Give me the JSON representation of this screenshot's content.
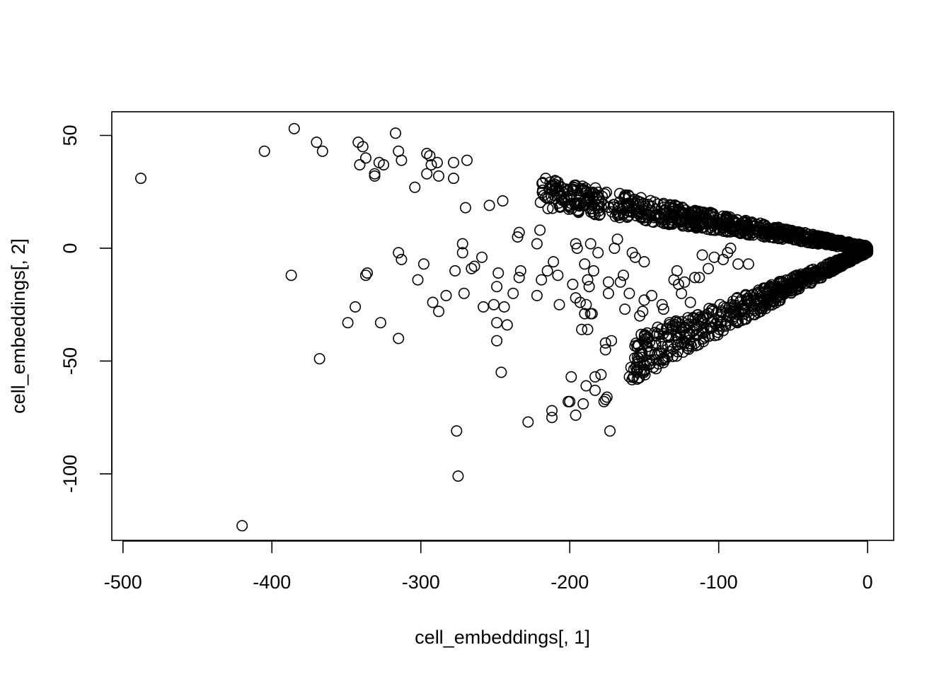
{
  "chart_data": {
    "type": "scatter",
    "title": "",
    "xlabel": "cell_embeddings[, 1]",
    "ylabel": "cell_embeddings[, 2]",
    "xlim": [
      -507.5,
      17.5
    ],
    "ylim": [
      -129.5,
      60.5
    ],
    "xticks": [
      -500,
      -400,
      -300,
      -200,
      -100,
      0
    ],
    "yticks": [
      -100,
      -50,
      0,
      50
    ],
    "grid": false,
    "legend": "none",
    "marker": "open-circle",
    "outlier_points": [
      [
        -488,
        31
      ],
      [
        -420,
        -123
      ],
      [
        -405,
        43
      ],
      [
        -385,
        53
      ],
      [
        -387,
        -12
      ],
      [
        -370,
        47
      ],
      [
        -366,
        43
      ],
      [
        -368,
        -49
      ],
      [
        -349,
        -33
      ],
      [
        -344,
        -26
      ],
      [
        -342,
        47
      ],
      [
        -341,
        37
      ],
      [
        -339,
        45
      ],
      [
        -337,
        40
      ],
      [
        -337,
        -12
      ],
      [
        -336,
        -11
      ],
      [
        -331,
        32
      ],
      [
        -331,
        33
      ],
      [
        -328,
        38
      ],
      [
        -327,
        -33
      ],
      [
        -325,
        37
      ],
      [
        -317,
        51
      ],
      [
        -315,
        43
      ],
      [
        -315,
        -2
      ],
      [
        -315,
        -40
      ],
      [
        -313,
        39
      ],
      [
        -313,
        -5
      ],
      [
        -304,
        27
      ],
      [
        -302,
        -14
      ],
      [
        -298,
        -7
      ],
      [
        -296,
        33
      ],
      [
        -296,
        42
      ],
      [
        -294,
        41
      ],
      [
        -293,
        37
      ],
      [
        -292,
        -24
      ],
      [
        -289,
        38
      ],
      [
        -288,
        -28
      ],
      [
        -288,
        32
      ],
      [
        -283,
        -21
      ],
      [
        -278,
        38
      ],
      [
        -278,
        31
      ],
      [
        -277,
        -10
      ],
      [
        -276,
        -81
      ],
      [
        -275,
        -101
      ],
      [
        -272,
        2
      ],
      [
        -272,
        -2
      ],
      [
        -271,
        -20
      ],
      [
        -270,
        18
      ],
      [
        -269,
        39
      ],
      [
        -266,
        -9
      ],
      [
        -264,
        -8
      ],
      [
        -259,
        -4
      ],
      [
        -258,
        -26
      ],
      [
        -254,
        19
      ],
      [
        -251,
        -25
      ],
      [
        -249,
        -41
      ],
      [
        -249,
        -33
      ],
      [
        -249,
        -17
      ],
      [
        -248,
        -11
      ],
      [
        -246,
        -55
      ],
      [
        -245,
        21
      ],
      [
        -244,
        -26
      ],
      [
        -242,
        -34
      ],
      [
        -238,
        -20
      ],
      [
        -235,
        5
      ],
      [
        -234,
        7
      ],
      [
        -234,
        -13
      ],
      [
        -233,
        -10
      ],
      [
        -228,
        -77
      ],
      [
        -222,
        2
      ],
      [
        -222,
        -21
      ],
      [
        -220,
        8
      ],
      [
        -219,
        -14
      ],
      [
        -215,
        -10
      ],
      [
        -212,
        -72
      ],
      [
        -212,
        -75
      ],
      [
        -211,
        -6
      ],
      [
        -208,
        -12
      ],
      [
        -207,
        -25
      ],
      [
        -201,
        -68
      ],
      [
        -200,
        -68
      ],
      [
        -199,
        -57
      ],
      [
        -198,
        -16
      ],
      [
        -196,
        -74
      ],
      [
        -196,
        -22
      ],
      [
        -196,
        2
      ],
      [
        -195,
        0
      ],
      [
        -193,
        -24
      ],
      [
        -192,
        -36
      ],
      [
        -191,
        -69
      ],
      [
        -190,
        -29
      ],
      [
        -190,
        -7
      ],
      [
        -189,
        -61
      ],
      [
        -189,
        -25
      ],
      [
        -188,
        -36
      ],
      [
        -188,
        -14
      ],
      [
        -187,
        -17
      ],
      [
        -186,
        -29
      ],
      [
        -186,
        2
      ],
      [
        -185,
        -29
      ],
      [
        -184,
        -10
      ],
      [
        -183,
        -57
      ],
      [
        -183,
        -63
      ],
      [
        -181,
        -2
      ],
      [
        -179,
        -56
      ],
      [
        -177,
        -68
      ],
      [
        -176,
        -42
      ],
      [
        -176,
        -45
      ],
      [
        -176,
        -67
      ],
      [
        -175,
        -66
      ],
      [
        -174,
        -15
      ],
      [
        -174,
        -20
      ],
      [
        -173,
        -81
      ],
      [
        -172,
        -41
      ],
      [
        -170,
        0
      ],
      [
        -168,
        4
      ],
      [
        -166,
        -15
      ],
      [
        -164,
        -12
      ],
      [
        -163,
        -27
      ],
      [
        -160,
        -20
      ],
      [
        -158,
        -2
      ],
      [
        -156,
        -4
      ],
      [
        -153,
        -30
      ],
      [
        -151,
        -28
      ],
      [
        -150,
        -6
      ],
      [
        -150,
        -23
      ],
      [
        -145,
        -21
      ],
      [
        -141,
        -35
      ],
      [
        -138,
        -25
      ],
      [
        -137,
        -27
      ],
      [
        -133,
        -33
      ],
      [
        -130,
        -14
      ],
      [
        -128,
        -10
      ],
      [
        -127,
        -16
      ],
      [
        -125,
        -20
      ],
      [
        -123,
        -15
      ],
      [
        -119,
        -24
      ],
      [
        -116,
        -13
      ],
      [
        -113,
        -13
      ],
      [
        -111,
        -3
      ],
      [
        -107,
        -9
      ],
      [
        -103,
        -4
      ],
      [
        -97,
        -5
      ],
      [
        -94,
        -2
      ],
      [
        -92,
        0
      ],
      [
        -87,
        -7
      ],
      [
        -80,
        -7
      ]
    ],
    "dense_cluster_upper": {
      "description_values": "points along upper band from (-220, 26) to (0, 0)",
      "x_range": [
        -220,
        0
      ],
      "y_start": [
        18,
        32
      ],
      "y_end": [
        -1,
        1
      ]
    },
    "dense_cluster_lower": {
      "x_range": [
        -160,
        0
      ],
      "y_start": [
        -60,
        -40
      ],
      "y_end": [
        -2,
        0
      ]
    }
  }
}
